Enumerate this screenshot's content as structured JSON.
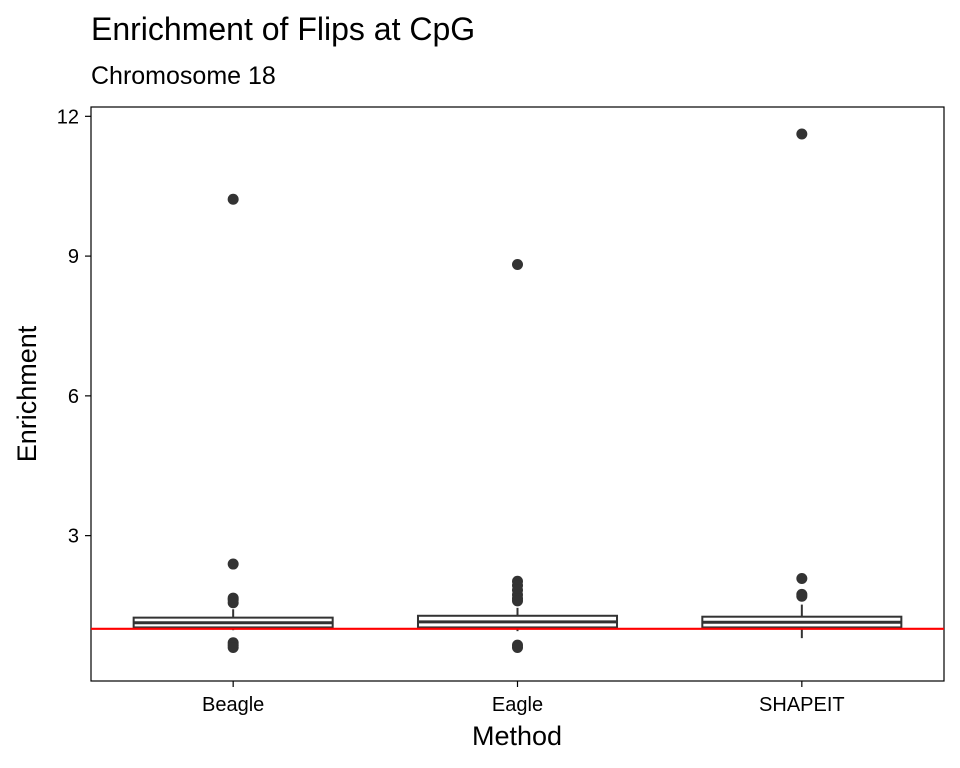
{
  "chart_data": {
    "type": "boxplot",
    "title": "Enrichment of Flips at CpG",
    "subtitle": "Chromosome 18",
    "xlabel": "Method",
    "ylabel": "Enrichment",
    "categories": [
      "Beagle",
      "Eagle",
      "SHAPEIT"
    ],
    "ylim": [
      -0.12,
      12.2
    ],
    "yticks": [
      3,
      6,
      9,
      12
    ],
    "grid": false,
    "reference_line": {
      "y": 1.0,
      "color": "#ff0000"
    },
    "boxes": [
      {
        "name": "Beagle",
        "whisker_low": 0.97,
        "q1": 1.03,
        "median": 1.13,
        "q3": 1.24,
        "whisker_high": 1.42,
        "outliers": [
          10.22,
          2.39,
          1.66,
          1.62,
          1.56,
          0.7,
          0.65,
          0.6
        ]
      },
      {
        "name": "Eagle",
        "whisker_low": 0.95,
        "q1": 1.03,
        "median": 1.15,
        "q3": 1.28,
        "whisker_high": 1.45,
        "outliers": [
          8.82,
          2.02,
          1.93,
          1.83,
          1.73,
          1.65,
          1.6,
          0.65,
          0.6
        ]
      },
      {
        "name": "SHAPEIT",
        "whisker_low": 0.8,
        "q1": 1.03,
        "median": 1.14,
        "q3": 1.26,
        "whisker_high": 1.52,
        "outliers": [
          11.62,
          2.08,
          1.74,
          1.7
        ]
      }
    ],
    "colors": {
      "box": "#333333",
      "outlier": "#333333",
      "reference": "#ff0000",
      "axis": "#000000"
    }
  }
}
